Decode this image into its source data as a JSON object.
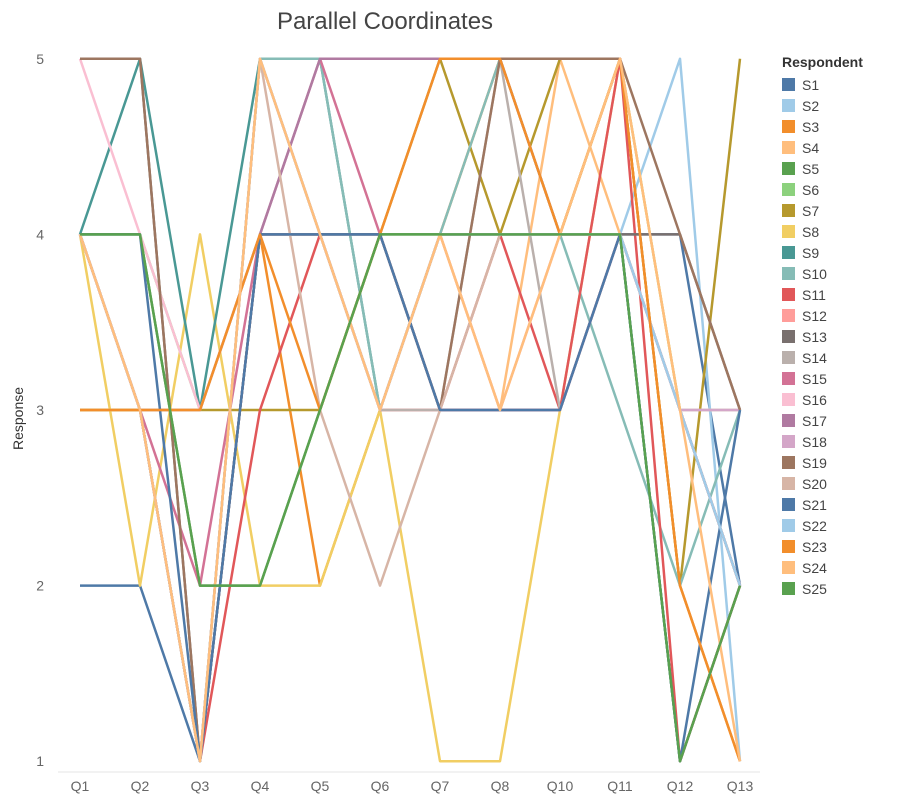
{
  "chart_data": {
    "type": "line",
    "title": "Parallel Coordinates",
    "ylabel": "Response",
    "xlabel": "",
    "categories": [
      "Q1",
      "Q2",
      "Q3",
      "Q4",
      "Q5",
      "Q6",
      "Q7",
      "Q8",
      "Q10",
      "Q11",
      "Q12",
      "Q13"
    ],
    "yticks": [
      1,
      2,
      3,
      4,
      5
    ],
    "ylim": [
      0.95,
      5.05
    ],
    "legend_title": "Respondent",
    "legend_placement": "right",
    "grid": false,
    "series": [
      {
        "name": "S1",
        "color": "#4e79a7",
        "values": [
          2,
          2,
          1,
          4,
          4,
          4,
          3,
          3,
          3,
          4,
          4,
          2
        ]
      },
      {
        "name": "S2",
        "color": "#a0cbe8",
        "values": [
          4,
          3,
          1,
          5,
          4,
          3,
          4,
          4,
          4,
          4,
          5,
          1
        ]
      },
      {
        "name": "S3",
        "color": "#f28e2b",
        "values": [
          3,
          3,
          3,
          4,
          2,
          3,
          4,
          5,
          4,
          5,
          2,
          1
        ]
      },
      {
        "name": "S4",
        "color": "#ffbe7d",
        "values": [
          4,
          3,
          1,
          5,
          4,
          3,
          4,
          3,
          5,
          4,
          3,
          2
        ]
      },
      {
        "name": "S5",
        "color": "#59a14f",
        "values": [
          4,
          4,
          2,
          2,
          3,
          4,
          4,
          4,
          4,
          4,
          1,
          2
        ]
      },
      {
        "name": "S6",
        "color": "#8cd17d",
        "values": [
          4,
          4,
          3,
          4,
          4,
          3,
          4,
          4,
          4,
          5,
          3,
          3
        ]
      },
      {
        "name": "S7",
        "color": "#b6992d",
        "values": [
          3,
          3,
          3,
          3,
          3,
          4,
          5,
          4,
          5,
          5,
          2,
          5
        ]
      },
      {
        "name": "S8",
        "color": "#f1ce63",
        "values": [
          4,
          2,
          4,
          2,
          2,
          3,
          1,
          1,
          3,
          5,
          3,
          2
        ]
      },
      {
        "name": "S9",
        "color": "#499894",
        "values": [
          4,
          5,
          3,
          5,
          5,
          3,
          4,
          4,
          4,
          4,
          1,
          2
        ]
      },
      {
        "name": "S10",
        "color": "#86bcb6",
        "values": [
          4,
          3,
          1,
          5,
          5,
          3,
          4,
          5,
          4,
          3,
          2,
          3
        ]
      },
      {
        "name": "S11",
        "color": "#e15759",
        "values": [
          4,
          3,
          1,
          3,
          4,
          3,
          3,
          4,
          3,
          5,
          1,
          2
        ]
      },
      {
        "name": "S12",
        "color": "#ff9d9a",
        "values": [
          4,
          3,
          1,
          5,
          4,
          3,
          4,
          3,
          4,
          4,
          3,
          2
        ]
      },
      {
        "name": "S13",
        "color": "#79706e",
        "values": [
          5,
          5,
          1,
          4,
          4,
          4,
          3,
          3,
          3,
          4,
          4,
          3
        ]
      },
      {
        "name": "S14",
        "color": "#bab0ac",
        "values": [
          4,
          3,
          1,
          5,
          4,
          3,
          3,
          5,
          3,
          4,
          3,
          2
        ]
      },
      {
        "name": "S15",
        "color": "#d37295",
        "values": [
          4,
          3,
          2,
          4,
          5,
          4,
          3,
          3,
          3,
          4,
          3,
          2
        ]
      },
      {
        "name": "S16",
        "color": "#fabfd2",
        "values": [
          5,
          4,
          3,
          4,
          4,
          3,
          4,
          4,
          4,
          4,
          3,
          3
        ]
      },
      {
        "name": "S17",
        "color": "#b07aa1",
        "values": [
          4,
          3,
          1,
          4,
          5,
          5,
          5,
          5,
          4,
          4,
          3,
          2
        ]
      },
      {
        "name": "S18",
        "color": "#d4a6c8",
        "values": [
          4,
          3,
          3,
          4,
          4,
          3,
          4,
          4,
          4,
          4,
          3,
          3
        ]
      },
      {
        "name": "S19",
        "color": "#9d7660",
        "values": [
          5,
          5,
          1,
          4,
          4,
          4,
          3,
          5,
          5,
          5,
          4,
          3
        ]
      },
      {
        "name": "S20",
        "color": "#d7b5a6",
        "values": [
          4,
          3,
          1,
          5,
          3,
          2,
          3,
          4,
          4,
          4,
          3,
          2
        ]
      },
      {
        "name": "S21",
        "color": "#4e79a7",
        "values": [
          4,
          4,
          1,
          4,
          4,
          4,
          3,
          3,
          3,
          4,
          1,
          3
        ]
      },
      {
        "name": "S22",
        "color": "#a0cbe8",
        "values": [
          4,
          3,
          1,
          5,
          4,
          3,
          4,
          4,
          4,
          4,
          3,
          2
        ]
      },
      {
        "name": "S23",
        "color": "#f28e2b",
        "values": [
          3,
          3,
          3,
          4,
          3,
          4,
          5,
          5,
          4,
          5,
          2,
          1
        ]
      },
      {
        "name": "S24",
        "color": "#ffbe7d",
        "values": [
          4,
          3,
          1,
          5,
          4,
          3,
          4,
          3,
          4,
          5,
          3,
          1
        ]
      },
      {
        "name": "S25",
        "color": "#59a14f",
        "values": [
          4,
          4,
          2,
          2,
          3,
          4,
          4,
          4,
          4,
          4,
          1,
          2
        ]
      }
    ]
  }
}
